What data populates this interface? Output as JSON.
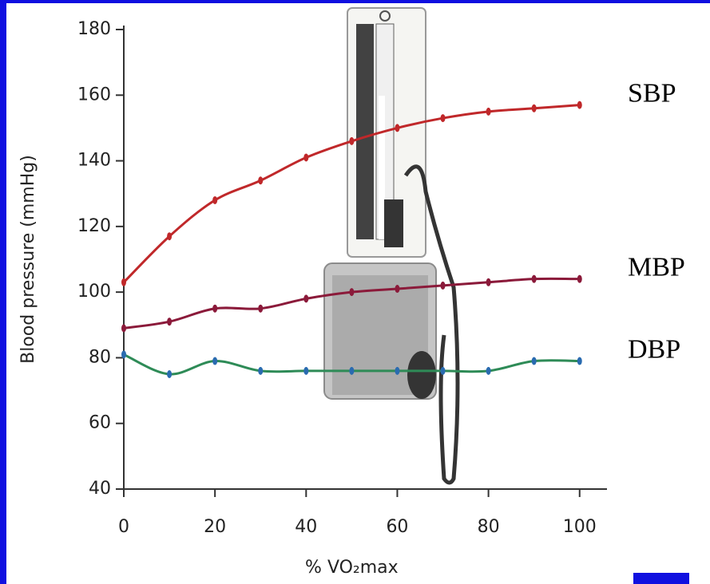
{
  "chart_data": {
    "type": "line",
    "ylabel": "Blood pressure (mmHg)",
    "xlabel": "% VO₂max",
    "x": [
      0,
      10,
      20,
      30,
      40,
      50,
      60,
      70,
      80,
      90,
      100
    ],
    "series": [
      {
        "name": "SBP",
        "color": "#c0282a",
        "marker_color": "#c0282a",
        "values": [
          103,
          117,
          128,
          134,
          141,
          146,
          150,
          153,
          155,
          156,
          157
        ]
      },
      {
        "name": "MBP",
        "color": "#8b1a3a",
        "marker_color": "#8b1a3a",
        "values": [
          89,
          91,
          95,
          95,
          98,
          100,
          101,
          102,
          103,
          104,
          104
        ]
      },
      {
        "name": "DBP",
        "color": "#2e8b57",
        "marker_color": "#2a6bb0",
        "values": [
          81,
          75,
          79,
          76,
          76,
          76,
          76,
          76,
          76,
          79,
          79
        ]
      }
    ],
    "xlim": [
      0,
      106
    ],
    "xticks": [
      0,
      20,
      40,
      60,
      80,
      100
    ],
    "ylim": [
      40,
      180
    ],
    "yticks": [
      40,
      60,
      80,
      100,
      120,
      140,
      160,
      180
    ]
  }
}
